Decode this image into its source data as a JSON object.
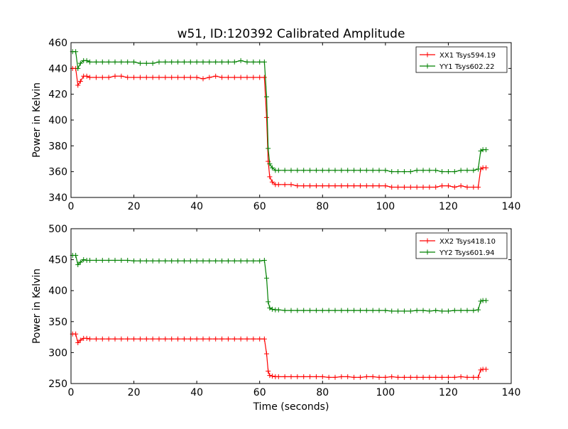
{
  "chart_data": [
    {
      "type": "line",
      "title": "w51, ID:120392 Calibrated Amplitude",
      "xlabel": "",
      "ylabel": "Power in Kelvin",
      "xlim": [
        0,
        140
      ],
      "ylim": [
        340,
        460
      ],
      "xticks": [
        0,
        20,
        40,
        60,
        80,
        100,
        120,
        140
      ],
      "yticks": [
        340,
        360,
        380,
        400,
        420,
        440,
        460
      ],
      "grid": false,
      "legend_position": "top-right",
      "series": [
        {
          "name": "XX1 Tsys594.19",
          "color": "#ff0000",
          "x": [
            0.5,
            1.5,
            2.2,
            3,
            4,
            5,
            6,
            8,
            10,
            12,
            14,
            16,
            18,
            20,
            22,
            24,
            26,
            28,
            30,
            32,
            34,
            36,
            38,
            40,
            42,
            44,
            46,
            48,
            50,
            52,
            54,
            56,
            58,
            60,
            61.5,
            62.2,
            62.7,
            63.2,
            64,
            65,
            66,
            68,
            70,
            72,
            74,
            76,
            78,
            80,
            82,
            84,
            86,
            88,
            90,
            92,
            94,
            96,
            98,
            100,
            102,
            104,
            106,
            108,
            110,
            112,
            114,
            116,
            118,
            120,
            122,
            124,
            126,
            128,
            129.5,
            130.3,
            131,
            132
          ],
          "y": [
            440,
            440,
            427,
            430,
            434,
            434,
            433,
            433,
            433,
            433,
            434,
            434,
            433,
            433,
            433,
            433,
            433,
            433,
            433,
            433,
            433,
            433,
            433,
            433,
            432,
            433,
            434,
            433,
            433,
            433,
            433,
            433,
            433,
            433,
            433,
            402,
            368,
            356,
            352,
            350,
            350,
            350,
            350,
            349,
            349,
            349,
            349,
            349,
            349,
            349,
            349,
            349,
            349,
            349,
            349,
            349,
            349,
            349,
            348,
            348,
            348,
            348,
            348,
            348,
            348,
            348,
            349,
            349,
            348,
            349,
            348,
            348,
            348,
            362,
            363,
            363
          ]
        },
        {
          "name": "YY1 Tsys602.22",
          "color": "#008000",
          "x": [
            0.5,
            1.5,
            2.2,
            3,
            4,
            5,
            6,
            8,
            10,
            12,
            14,
            16,
            18,
            20,
            22,
            24,
            26,
            28,
            30,
            32,
            34,
            36,
            38,
            40,
            42,
            44,
            46,
            48,
            50,
            52,
            54,
            56,
            58,
            60,
            61.5,
            62.2,
            62.7,
            63.2,
            64,
            65,
            66,
            68,
            70,
            72,
            74,
            76,
            78,
            80,
            82,
            84,
            86,
            88,
            90,
            92,
            94,
            96,
            98,
            100,
            102,
            104,
            106,
            108,
            110,
            112,
            114,
            116,
            118,
            120,
            122,
            124,
            126,
            128,
            129.5,
            130.3,
            131,
            132
          ],
          "y": [
            453,
            453,
            440,
            444,
            446,
            446,
            445,
            445,
            445,
            445,
            445,
            445,
            445,
            445,
            444,
            444,
            444,
            445,
            445,
            445,
            445,
            445,
            445,
            445,
            445,
            445,
            445,
            445,
            445,
            445,
            446,
            445,
            445,
            445,
            445,
            418,
            378,
            366,
            363,
            361,
            361,
            361,
            361,
            361,
            361,
            361,
            361,
            361,
            361,
            361,
            361,
            361,
            361,
            361,
            361,
            361,
            361,
            361,
            360,
            360,
            360,
            360,
            361,
            361,
            361,
            361,
            360,
            360,
            360,
            361,
            361,
            361,
            362,
            376,
            377,
            377
          ]
        }
      ]
    },
    {
      "type": "line",
      "title": "",
      "xlabel": "Time (seconds)",
      "ylabel": "Power in Kelvin",
      "xlim": [
        0,
        140
      ],
      "ylim": [
        250,
        500
      ],
      "xticks": [
        0,
        20,
        40,
        60,
        80,
        100,
        120,
        140
      ],
      "yticks": [
        250,
        300,
        350,
        400,
        450,
        500
      ],
      "grid": false,
      "legend_position": "top-right",
      "series": [
        {
          "name": "XX2 Tsys418.10",
          "color": "#ff0000",
          "x": [
            0.5,
            1.5,
            2.2,
            3,
            4,
            5,
            6,
            8,
            10,
            12,
            14,
            16,
            18,
            20,
            22,
            24,
            26,
            28,
            30,
            32,
            34,
            36,
            38,
            40,
            42,
            44,
            46,
            48,
            50,
            52,
            54,
            56,
            58,
            60,
            61.5,
            62.2,
            62.7,
            63.2,
            64,
            65,
            66,
            68,
            70,
            72,
            74,
            76,
            78,
            80,
            82,
            84,
            86,
            88,
            90,
            92,
            94,
            96,
            98,
            100,
            102,
            104,
            106,
            108,
            110,
            112,
            114,
            116,
            118,
            120,
            122,
            124,
            126,
            128,
            129.5,
            130.3,
            131,
            132
          ],
          "y": [
            330,
            330,
            316,
            320,
            323,
            323,
            322,
            322,
            322,
            322,
            322,
            322,
            322,
            322,
            322,
            322,
            322,
            322,
            322,
            322,
            322,
            322,
            322,
            322,
            322,
            322,
            322,
            322,
            322,
            322,
            322,
            322,
            322,
            322,
            322,
            298,
            270,
            263,
            262,
            261,
            261,
            261,
            261,
            261,
            261,
            261,
            261,
            261,
            260,
            260,
            261,
            261,
            260,
            260,
            261,
            261,
            260,
            260,
            261,
            260,
            260,
            260,
            260,
            260,
            260,
            260,
            260,
            260,
            260,
            261,
            260,
            260,
            260,
            272,
            273,
            273
          ]
        },
        {
          "name": "YY2 Tsys601.94",
          "color": "#008000",
          "x": [
            0.5,
            1.5,
            2.2,
            3,
            4,
            5,
            6,
            8,
            10,
            12,
            14,
            16,
            18,
            20,
            22,
            24,
            26,
            28,
            30,
            32,
            34,
            36,
            38,
            40,
            42,
            44,
            46,
            48,
            50,
            52,
            54,
            56,
            58,
            60,
            61.5,
            62.2,
            62.7,
            63.2,
            64,
            65,
            66,
            68,
            70,
            72,
            74,
            76,
            78,
            80,
            82,
            84,
            86,
            88,
            90,
            92,
            94,
            96,
            98,
            100,
            102,
            104,
            106,
            108,
            110,
            112,
            114,
            116,
            118,
            120,
            122,
            124,
            126,
            128,
            129.5,
            130.3,
            131,
            132
          ],
          "y": [
            457,
            457,
            442,
            446,
            450,
            449,
            449,
            449,
            449,
            449,
            449,
            449,
            449,
            448,
            448,
            448,
            448,
            448,
            448,
            448,
            448,
            448,
            448,
            448,
            448,
            448,
            448,
            448,
            448,
            448,
            448,
            448,
            448,
            448,
            449,
            420,
            382,
            372,
            370,
            369,
            369,
            368,
            368,
            368,
            368,
            368,
            368,
            368,
            368,
            368,
            368,
            368,
            368,
            368,
            368,
            368,
            368,
            368,
            367,
            367,
            367,
            367,
            368,
            368,
            367,
            368,
            367,
            367,
            368,
            368,
            368,
            368,
            369,
            383,
            384,
            384
          ]
        }
      ]
    }
  ]
}
